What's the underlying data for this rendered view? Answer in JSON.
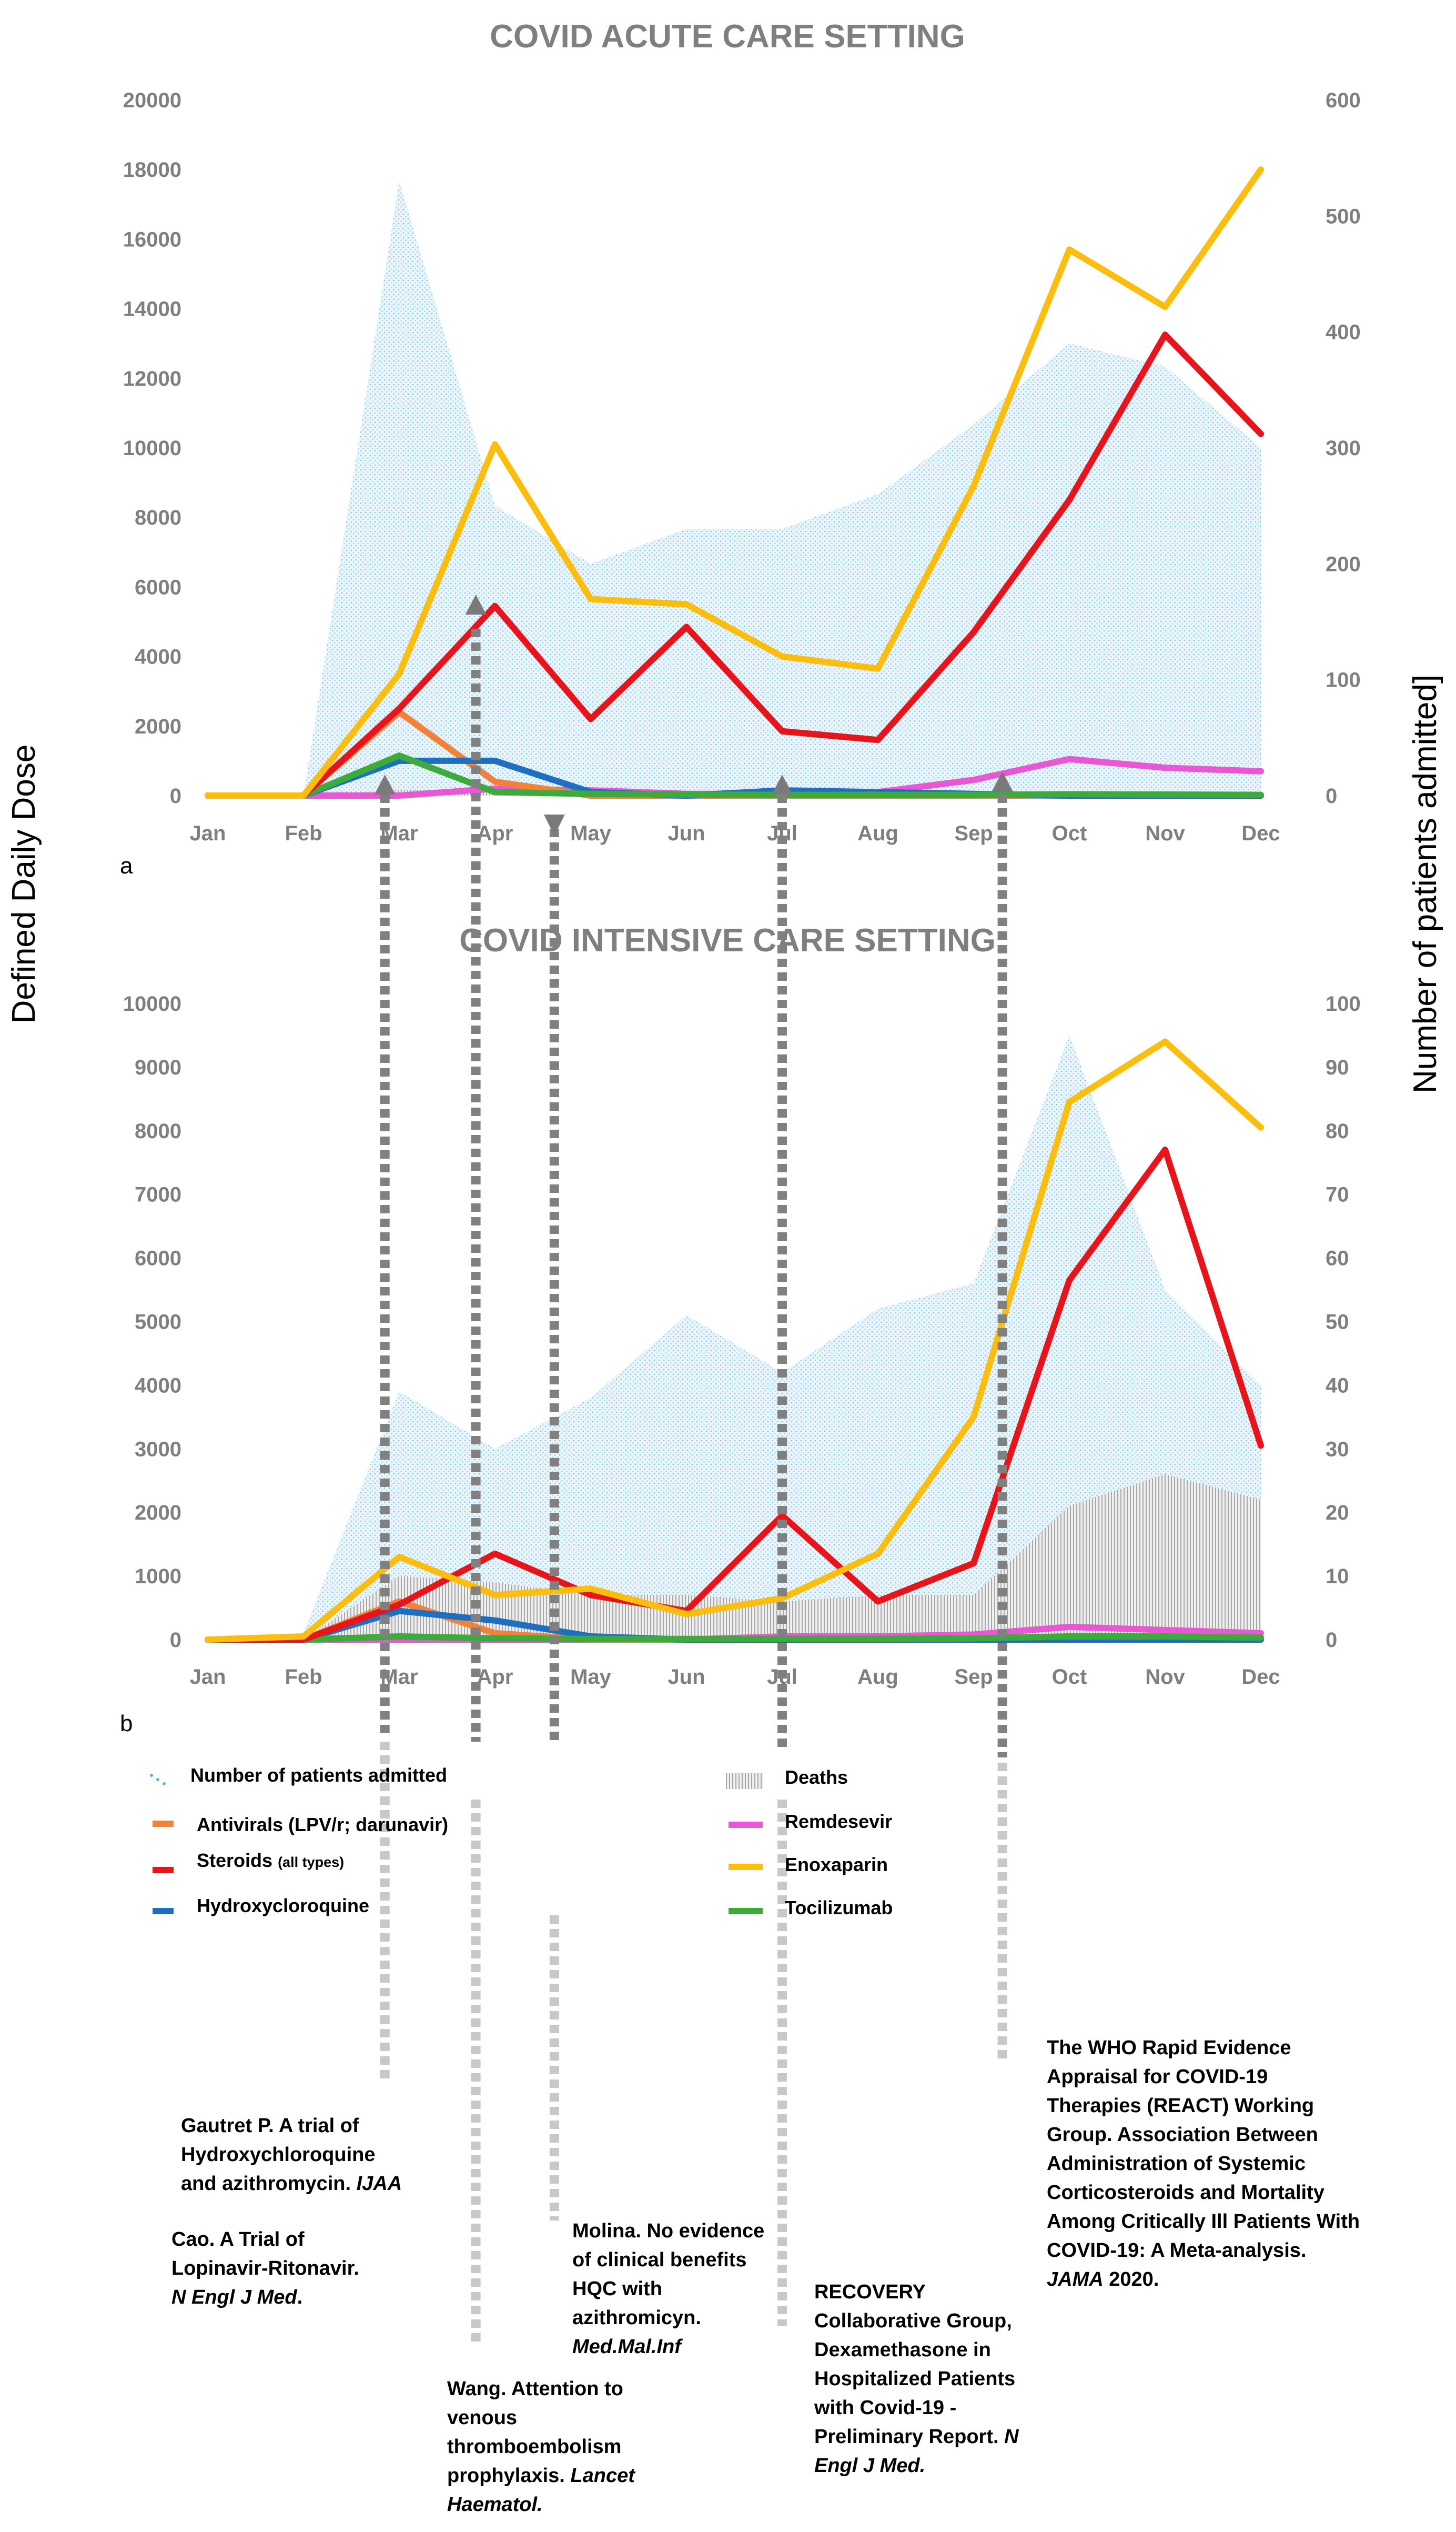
{
  "chart_data": [
    {
      "id": "a",
      "type": "line",
      "panel_label": "a",
      "title": "COVID ACUTE CARE SETTING",
      "categories": [
        "Jan",
        "Feb",
        "Mar",
        "Apr",
        "May",
        "Jun",
        "Jul",
        "Aug",
        "Sep",
        "Oct",
        "Nov",
        "Dec"
      ],
      "y_left_ticks": [
        "0",
        "2000",
        "4000",
        "6000",
        "8000",
        "10000",
        "12000",
        "14000",
        "16000",
        "18000",
        "20000"
      ],
      "y_right_ticks": [
        "0",
        "100",
        "200",
        "300",
        "400",
        "500",
        "600"
      ],
      "ylim_left": [
        0,
        20000
      ],
      "ylim_right": [
        0,
        600
      ],
      "patients_admitted_area": [
        0,
        0,
        530,
        250,
        200,
        230,
        230,
        260,
        320,
        390,
        370,
        300
      ],
      "deaths_area": [
        0,
        0,
        5,
        5,
        4,
        2,
        1,
        1,
        1,
        1,
        1,
        1
      ],
      "series": [
        {
          "name": "Steroids (all types)",
          "key": "steroids",
          "color": "#e8141c",
          "values": [
            0,
            0,
            2500,
            5450,
            2200,
            4850,
            1850,
            1600,
            4700,
            8500,
            13250,
            10400
          ]
        },
        {
          "name": "Enoxaparin",
          "key": "enoxaparin",
          "color": "#fbbd0e",
          "values": [
            0,
            0,
            3500,
            10100,
            5650,
            5500,
            4000,
            3650,
            8900,
            15700,
            14050,
            18000
          ]
        },
        {
          "name": "Hydroxycloroquine",
          "key": "hcq",
          "color": "#1f6fc1",
          "values": [
            0,
            0,
            1000,
            1000,
            100,
            0,
            150,
            100,
            50,
            0,
            0,
            0
          ]
        },
        {
          "name": "Tocilizumab",
          "key": "tocilizumab",
          "color": "#3daa3c",
          "values": [
            0,
            0,
            1150,
            100,
            50,
            30,
            20,
            20,
            20,
            40,
            30,
            20
          ]
        },
        {
          "name": "Remdesevir",
          "key": "remdesevir",
          "color": "#e958d4",
          "values": [
            0,
            0,
            0,
            200,
            150,
            50,
            50,
            100,
            450,
            1050,
            800,
            700
          ]
        },
        {
          "name": "Antivirals (LPV/r; darunavir)",
          "key": "antivirals",
          "color": "#f2823a",
          "values": [
            0,
            0,
            2400,
            400,
            0,
            0,
            0,
            0,
            0,
            0,
            0,
            0
          ]
        }
      ]
    },
    {
      "id": "b",
      "type": "line",
      "panel_label": "b",
      "title": "COVID INTENSIVE CARE SETTING",
      "categories": [
        "Jan",
        "Feb",
        "Mar",
        "Apr",
        "May",
        "Jun",
        "Jul",
        "Aug",
        "Sep",
        "Oct",
        "Nov",
        "Dec"
      ],
      "y_left_ticks": [
        "0",
        "1000",
        "2000",
        "3000",
        "4000",
        "5000",
        "6000",
        "7000",
        "8000",
        "9000",
        "10000"
      ],
      "y_right_ticks": [
        "0",
        "10",
        "20",
        "30",
        "40",
        "50",
        "60",
        "70",
        "80",
        "90",
        "100"
      ],
      "ylim_left": [
        0,
        10000
      ],
      "ylim_right": [
        0,
        100
      ],
      "patients_admitted_area": [
        0,
        1,
        39,
        30,
        38,
        51,
        42,
        52,
        56,
        95,
        55,
        40
      ],
      "deaths_area": [
        0,
        0,
        10,
        9,
        7,
        7,
        6,
        7,
        7,
        21,
        26,
        22
      ],
      "series": [
        {
          "name": "Steroids (all types)",
          "key": "steroids",
          "color": "#e8141c",
          "values": [
            0,
            0,
            550,
            1350,
            700,
            450,
            1950,
            600,
            1200,
            5650,
            7700,
            3050
          ]
        },
        {
          "name": "Enoxaparin",
          "key": "enoxaparin",
          "color": "#fbbd0e",
          "values": [
            0,
            50,
            1300,
            700,
            800,
            400,
            650,
            1350,
            3500,
            8450,
            9400,
            8050
          ]
        },
        {
          "name": "Hydroxycloroquine",
          "key": "hcq",
          "color": "#1f6fc1",
          "values": [
            0,
            0,
            450,
            300,
            50,
            0,
            0,
            0,
            0,
            0,
            0,
            0
          ]
        },
        {
          "name": "Tocilizumab",
          "key": "tocilizumab",
          "color": "#3daa3c",
          "values": [
            0,
            0,
            50,
            20,
            10,
            10,
            10,
            10,
            20,
            50,
            50,
            30
          ]
        },
        {
          "name": "Remdesevir",
          "key": "remdesevir",
          "color": "#e958d4",
          "values": [
            0,
            0,
            0,
            0,
            0,
            0,
            50,
            50,
            80,
            200,
            150,
            100
          ]
        },
        {
          "name": "Antivirals (LPV/r; darunavir)",
          "key": "antivirals",
          "color": "#f2823a",
          "values": [
            0,
            0,
            600,
            100,
            0,
            0,
            0,
            0,
            0,
            0,
            0,
            0
          ]
        }
      ]
    }
  ],
  "y_left_label": "Defined Daily Dose",
  "y_right_label": "Number of patients admitted]",
  "legend": [
    {
      "key": "patients",
      "label": "Number of patients admitted",
      "color": "#5bb4d8"
    },
    {
      "key": "deaths",
      "label": "Deaths",
      "color": "#9a9a9a"
    },
    {
      "key": "antivirals",
      "label": "Antivirals (LPV/r; darunavir)",
      "color": "#f2823a"
    },
    {
      "key": "remdesevir",
      "label": "Remdesevir",
      "color": "#e958d4"
    },
    {
      "key": "steroids",
      "label": "Steroids",
      "label_small": "(all types)",
      "color": "#e8141c"
    },
    {
      "key": "enoxaparin",
      "label": "Enoxaparin",
      "color": "#fbbd0e"
    },
    {
      "key": "hcq",
      "label": "Hydroxycloroquine",
      "color": "#1f6fc1"
    },
    {
      "key": "tocilizumab",
      "label": "Tocilizumab",
      "color": "#3daa3c"
    }
  ],
  "publication_markers": [
    {
      "key": "gautret",
      "month_index": 1.85
    },
    {
      "key": "cao",
      "month_index": 2.8
    },
    {
      "key": "molina",
      "month_index": 3.62
    },
    {
      "key": "recovery",
      "month_index": 6.0
    },
    {
      "key": "who",
      "month_index": 8.3
    }
  ],
  "annotations": [
    {
      "key": "gautret",
      "lines": [
        [
          {
            "t": "Gautret P. A trial of"
          }
        ],
        [
          {
            "t": "Hydroxychloroquine"
          }
        ],
        [
          {
            "t": "and azithromycin. "
          },
          {
            "t": "IJAA",
            "i": true
          }
        ]
      ]
    },
    {
      "key": "cao",
      "lines": [
        [
          {
            "t": "Cao. A Trial of"
          }
        ],
        [
          {
            "t": "Lopinavir-Ritonavir."
          }
        ],
        [
          {
            "t": "N Engl J Med",
            "i": true
          },
          {
            "t": "."
          }
        ]
      ]
    },
    {
      "key": "molina",
      "lines": [
        [
          {
            "t": "Molina. No evidence"
          }
        ],
        [
          {
            "t": "of clinical benefits"
          }
        ],
        [
          {
            "t": "HQC with"
          }
        ],
        [
          {
            "t": "azithromicyn."
          }
        ],
        [
          {
            "t": "Med.Mal.Inf",
            "i": true
          }
        ]
      ]
    },
    {
      "key": "wang",
      "lines": [
        [
          {
            "t": "Wang. Attention to"
          }
        ],
        [
          {
            "t": "venous"
          }
        ],
        [
          {
            "t": "thromboembolism"
          }
        ],
        [
          {
            "t": "prophylaxis. "
          },
          {
            "t": "Lancet",
            "i": true
          }
        ],
        [
          {
            "t": "Haematol.",
            "i": true
          }
        ]
      ]
    },
    {
      "key": "recovery",
      "lines": [
        [
          {
            "t": "RECOVERY"
          }
        ],
        [
          {
            "t": "Collaborative Group,"
          }
        ],
        [
          {
            "t": "Dexamethasone in"
          }
        ],
        [
          {
            "t": "Hospitalized Patients"
          }
        ],
        [
          {
            "t": "with Covid-19 -"
          }
        ],
        [
          {
            "t": "Preliminary Report. "
          },
          {
            "t": "N",
            "i": true
          }
        ],
        [
          {
            "t": "Engl J Med.",
            "i": true
          }
        ]
      ]
    },
    {
      "key": "who",
      "lines": [
        [
          {
            "t": "The WHO Rapid Evidence"
          }
        ],
        [
          {
            "t": "Appraisal for COVID-19"
          }
        ],
        [
          {
            "t": "Therapies (REACT) Working"
          }
        ],
        [
          {
            "t": "Group. Association Between"
          }
        ],
        [
          {
            "t": "Administration of Systemic"
          }
        ],
        [
          {
            "t": "Corticosteroids and Mortality"
          }
        ],
        [
          {
            "t": "Among Critically Ill Patients With"
          }
        ],
        [
          {
            "t": "COVID-19: A Meta-analysis."
          }
        ],
        [
          {
            "t": "JAMA",
            "i": true
          },
          {
            "t": " 2020."
          }
        ]
      ]
    }
  ]
}
